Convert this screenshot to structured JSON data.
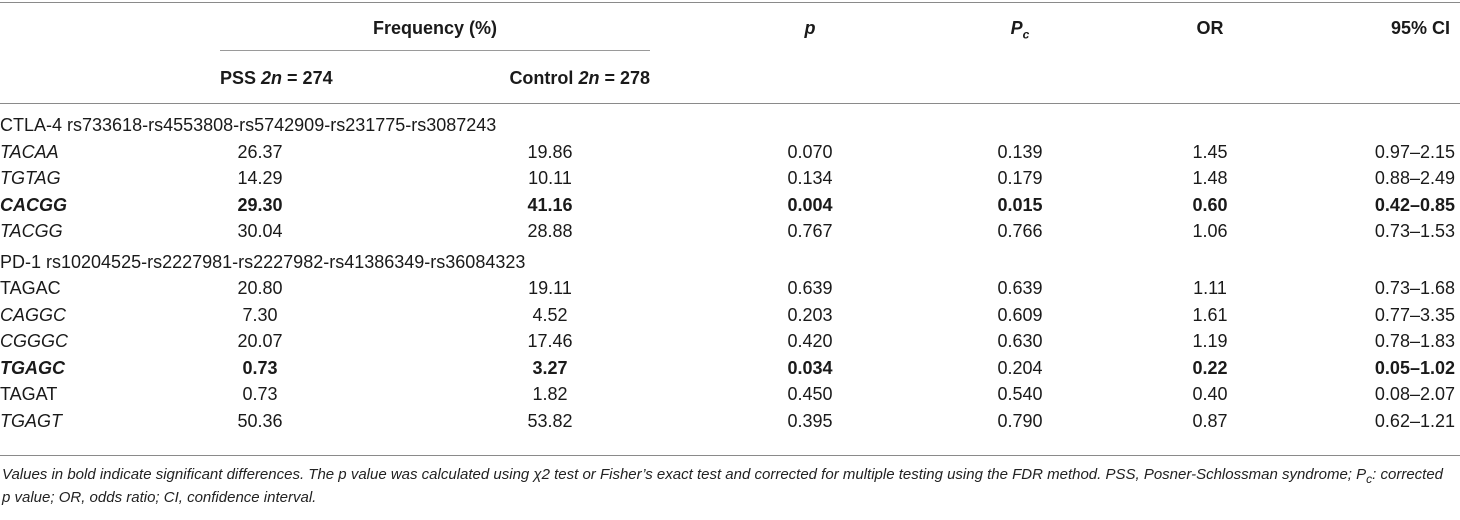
{
  "header": {
    "frequency": "Frequency (%)",
    "pss_prefix": "PSS ",
    "pss_2n": "2n",
    "pss_suffix": " = 274",
    "control_prefix": "Control ",
    "control_2n": "2n",
    "control_suffix": " = 278",
    "p": "p",
    "pc_main": "P",
    "pc_sub": "c",
    "or": "OR",
    "ci": "95% CI"
  },
  "sections": [
    {
      "title": "CTLA-4 rs733618-rs4553808-rs5742909-rs231775-rs3087243",
      "rows": [
        {
          "haplotype": "TACAA",
          "italic": true,
          "bold": false,
          "pss": "26.37",
          "control": "19.86",
          "p": "0.070",
          "pc": "0.139",
          "or": "1.45",
          "ci": "0.97–2.15"
        },
        {
          "haplotype": "TGTAG",
          "italic": true,
          "bold": false,
          "pss": "14.29",
          "control": "10.11",
          "p": "0.134",
          "pc": "0.179",
          "or": "1.48",
          "ci": "0.88–2.49"
        },
        {
          "haplotype": "CACGG",
          "italic": true,
          "bold": true,
          "pss": "29.30",
          "control": "41.16",
          "p": "0.004",
          "pc": "0.015",
          "or": "0.60",
          "ci": "0.42–0.85"
        },
        {
          "haplotype": "TACGG",
          "italic": true,
          "bold": false,
          "pss": "30.04",
          "control": "28.88",
          "p": "0.767",
          "pc": "0.766",
          "or": "1.06",
          "ci": "0.73–1.53"
        }
      ]
    },
    {
      "title": "PD-1 rs10204525-rs2227981-rs2227982-rs41386349-rs36084323",
      "rows": [
        {
          "haplotype": "TAGAC",
          "italic": false,
          "bold": false,
          "pss": "20.80",
          "control": "19.11",
          "p": "0.639",
          "pc": "0.639",
          "or": "1.11",
          "ci": "0.73–1.68"
        },
        {
          "haplotype": "CAGGC",
          "italic": true,
          "bold": false,
          "pss": "7.30",
          "control": "4.52",
          "p": "0.203",
          "pc": "0.609",
          "or": "1.61",
          "ci": "0.77–3.35"
        },
        {
          "haplotype": "CGGGC",
          "italic": true,
          "bold": false,
          "pss": "20.07",
          "control": "17.46",
          "p": "0.420",
          "pc": "0.630",
          "or": "1.19",
          "ci": "0.78–1.83"
        },
        {
          "haplotype": "TGAGC",
          "italic": true,
          "bold": true,
          "pc_normal": true,
          "pss": "0.73",
          "control": "3.27",
          "p": "0.034",
          "pc": "0.204",
          "or": "0.22",
          "ci": "0.05–1.02"
        },
        {
          "haplotype": "TAGAT",
          "italic": false,
          "bold": false,
          "pss": "0.73",
          "control": "1.82",
          "p": "0.450",
          "pc": "0.540",
          "or": "0.40",
          "ci": "0.08–2.07"
        },
        {
          "haplotype": "TGAGT",
          "italic": true,
          "bold": false,
          "pss": "50.36",
          "control": "53.82",
          "p": "0.395",
          "pc": "0.790",
          "or": "0.87",
          "ci": "0.62–1.21"
        }
      ]
    }
  ],
  "footnote": {
    "part1": "Values in bold indicate significant differences. The p value was calculated using χ2 test or Fisher’s exact test and corrected for multiple testing using the FDR method. PSS, Posner-Schlossman syndrome; P",
    "part1_sub": "c",
    "part2": ": corrected p value; OR, odds ratio; CI, confidence interval."
  }
}
